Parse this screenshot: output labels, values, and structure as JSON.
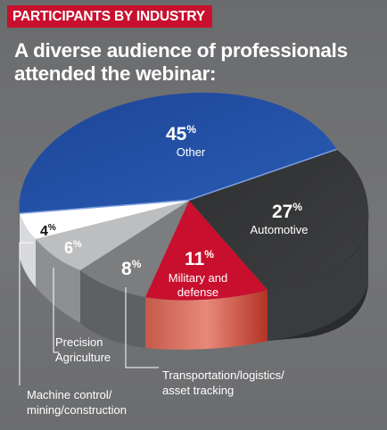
{
  "header": {
    "tag": "PARTICIPANTS BY INDUSTRY",
    "title_line1": "A diverse audience of professionals",
    "title_line2": "attended the webinar:"
  },
  "percent_sign": "%",
  "chart_data": {
    "type": "pie",
    "title": "PARTICIPANTS BY INDUSTRY",
    "subtitle": "A diverse audience of professionals attended the webinar:",
    "categories": [
      "Other",
      "Automotive",
      "Military and defense",
      "Transportation/logistics/ asset tracking",
      "Precision Agriculture",
      "Machine control/ mining/construction"
    ],
    "values": [
      45,
      27,
      11,
      8,
      6,
      4
    ],
    "colors": [
      "#1f4fa3",
      "#3a3b3d",
      "#c8102e",
      "#7c7d7f",
      "#bdbec0",
      "#ffffff"
    ],
    "annotations": {
      "other": "Other",
      "automotive": "Automotive",
      "military_line1": "Military and",
      "military_line2": "defense",
      "transport_line1": "Transportation/logistics/",
      "transport_line2": "asset tracking",
      "precision_line1": "Precision",
      "precision_line2": "Agriculture",
      "machine_line1": "Machine control/",
      "machine_line2": "mining/construction"
    }
  }
}
